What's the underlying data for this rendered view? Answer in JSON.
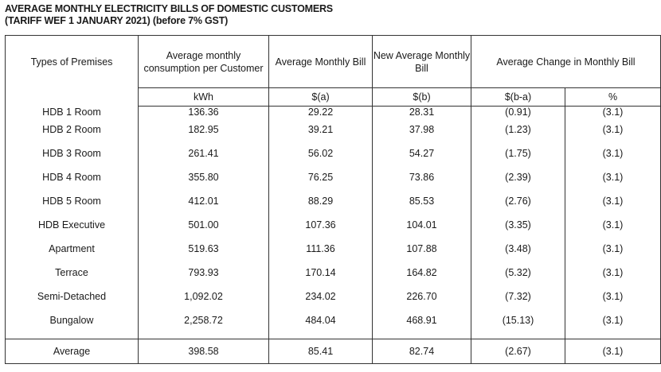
{
  "title": {
    "line1": "AVERAGE MONTHLY ELECTRICITY BILLS OF DOMESTIC CUSTOMERS",
    "line2": "(TARIFF WEF 1 JANUARY 2021) (before 7% GST)"
  },
  "headers": {
    "premises": "Types of Premises",
    "consumption": "Average monthly consumption per Customer",
    "bill": "Average Monthly Bill",
    "new_bill": "New Average Monthly Bill",
    "change": "Average Change in Monthly Bill"
  },
  "units": [
    "kWh",
    "$(a)",
    "$(b)",
    "$(b-a)",
    "%"
  ],
  "rows": [
    {
      "premises": "HDB 1 Room",
      "kwh": "136.36",
      "a": "29.22",
      "b": "28.31",
      "diff": "(0.91)",
      "pct": "(3.1)"
    },
    {
      "premises": "HDB 2 Room",
      "kwh": "182.95",
      "a": "39.21",
      "b": "37.98",
      "diff": "(1.23)",
      "pct": "(3.1)"
    },
    {
      "premises": "HDB 3 Room",
      "kwh": "261.41",
      "a": "56.02",
      "b": "54.27",
      "diff": "(1.75)",
      "pct": "(3.1)"
    },
    {
      "premises": "HDB 4 Room",
      "kwh": "355.80",
      "a": "76.25",
      "b": "73.86",
      "diff": "(2.39)",
      "pct": "(3.1)"
    },
    {
      "premises": "HDB 5 Room",
      "kwh": "412.01",
      "a": "88.29",
      "b": "85.53",
      "diff": "(2.76)",
      "pct": "(3.1)"
    },
    {
      "premises": "HDB Executive",
      "kwh": "501.00",
      "a": "107.36",
      "b": "104.01",
      "diff": "(3.35)",
      "pct": "(3.1)"
    },
    {
      "premises": "Apartment",
      "kwh": "519.63",
      "a": "111.36",
      "b": "107.88",
      "diff": "(3.48)",
      "pct": "(3.1)"
    },
    {
      "premises": "Terrace",
      "kwh": "793.93",
      "a": "170.14",
      "b": "164.82",
      "diff": "(5.32)",
      "pct": "(3.1)"
    },
    {
      "premises": "Semi-Detached",
      "kwh": "1,092.02",
      "a": "234.02",
      "b": "226.70",
      "diff": "(7.32)",
      "pct": "(3.1)"
    },
    {
      "premises": "Bungalow",
      "kwh": "2,258.72",
      "a": "484.04",
      "b": "468.91",
      "diff": "(15.13)",
      "pct": "(3.1)"
    }
  ],
  "average": {
    "premises": "Average",
    "kwh": "398.58",
    "a": "85.41",
    "b": "82.74",
    "diff": "(2.67)",
    "pct": "(3.1)"
  }
}
